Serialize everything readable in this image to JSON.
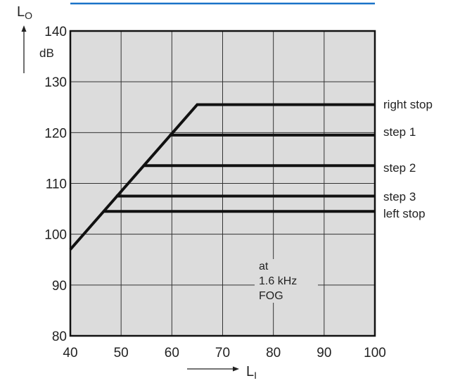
{
  "accent_color": "#1a73c8",
  "chart_data": {
    "type": "line",
    "xlabel": "L",
    "xlabel_sub": "I",
    "ylabel": "L",
    "ylabel_sub": "O",
    "yunit": "dB",
    "xlim": [
      40,
      100
    ],
    "ylim": [
      80,
      140
    ],
    "xticks": [
      40,
      50,
      60,
      70,
      80,
      90,
      100
    ],
    "yticks": [
      80,
      90,
      100,
      110,
      120,
      130,
      140
    ],
    "grid": true,
    "series": [
      {
        "name": "right stop",
        "points": [
          [
            40,
            97
          ],
          [
            65,
            125.5
          ],
          [
            100,
            125.5
          ]
        ]
      },
      {
        "name": "step 1",
        "points": [
          [
            59.5,
            119.5
          ],
          [
            100,
            119.5
          ]
        ]
      },
      {
        "name": "step 2",
        "points": [
          [
            54.5,
            113.5
          ],
          [
            100,
            113.5
          ]
        ]
      },
      {
        "name": "step 3",
        "points": [
          [
            49,
            107.5
          ],
          [
            100,
            107.5
          ]
        ]
      },
      {
        "name": "left stop",
        "points": [
          [
            46.5,
            104.5
          ],
          [
            100,
            104.5
          ]
        ]
      }
    ],
    "annotation": [
      "at",
      "1.6 kHz",
      "FOG"
    ]
  }
}
